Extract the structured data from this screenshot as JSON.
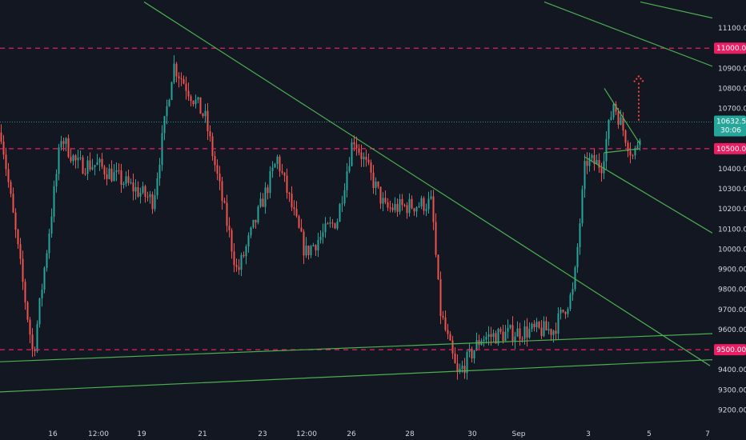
{
  "chart_data": {
    "type": "candlestick",
    "x_axis": {
      "ticks": [
        "16",
        "12:00",
        "19",
        "21",
        "23",
        "12:00",
        "26",
        "28",
        "30",
        "Sep",
        "3",
        "5",
        "7"
      ]
    },
    "y_axis": {
      "ticks": [
        "9200.00",
        "9300.00",
        "9400.00",
        "9500.00",
        "9600.00",
        "9700.00",
        "9800.00",
        "9900.00",
        "10000.00",
        "10100.00",
        "10200.00",
        "10300.00",
        "10400.00",
        "10500.00",
        "10600.00",
        "10700.00",
        "10800.00",
        "10900.00",
        "11000.00",
        "11100.00"
      ],
      "range": [
        9170,
        11180
      ]
    },
    "price_levels": [
      {
        "value": 11000.0,
        "label": "11000.00",
        "style": "dashed",
        "color": "#e91e63"
      },
      {
        "value": 10500.0,
        "label": "10500.00",
        "style": "dashed",
        "color": "#e91e63"
      },
      {
        "value": 9500.0,
        "label": "9500.00",
        "style": "dashed",
        "color": "#e91e63"
      }
    ],
    "current_price": {
      "value": 10632.5,
      "label": "10632.50",
      "countdown": "30:06",
      "color": "#26a69a"
    },
    "price_segments": [
      {
        "t0": 0,
        "t1": 40,
        "p0": 10580,
        "p1": 9470
      },
      {
        "t0": 40,
        "t1": 75,
        "p0": 9470,
        "p1": 10560
      },
      {
        "t0": 75,
        "t1": 95,
        "p0": 10560,
        "p1": 10420
      },
      {
        "t0": 95,
        "t1": 120,
        "p0": 10420,
        "p1": 10420
      },
      {
        "t0": 120,
        "t1": 190,
        "p0": 10420,
        "p1": 10240
      },
      {
        "t0": 190,
        "t1": 215,
        "p0": 10240,
        "p1": 10920
      },
      {
        "t0": 215,
        "t1": 255,
        "p0": 10920,
        "p1": 10650
      },
      {
        "t0": 255,
        "t1": 295,
        "p0": 10650,
        "p1": 9880
      },
      {
        "t0": 295,
        "t1": 345,
        "p0": 9880,
        "p1": 10450
      },
      {
        "t0": 345,
        "t1": 380,
        "p0": 10450,
        "p1": 9980
      },
      {
        "t0": 380,
        "t1": 420,
        "p0": 9980,
        "p1": 10150
      },
      {
        "t0": 420,
        "t1": 440,
        "p0": 10150,
        "p1": 10560
      },
      {
        "t0": 440,
        "t1": 480,
        "p0": 10560,
        "p1": 10200
      },
      {
        "t0": 480,
        "t1": 538,
        "p0": 10200,
        "p1": 10230
      },
      {
        "t0": 538,
        "t1": 548,
        "p0": 10230,
        "p1": 9700
      },
      {
        "t0": 548,
        "t1": 570,
        "p0": 9700,
        "p1": 9370
      },
      {
        "t0": 570,
        "t1": 600,
        "p0": 9370,
        "p1": 9560
      },
      {
        "t0": 600,
        "t1": 650,
        "p0": 9560,
        "p1": 9590
      },
      {
        "t0": 650,
        "t1": 690,
        "p0": 9590,
        "p1": 9600
      },
      {
        "t0": 690,
        "t1": 715,
        "p0": 9600,
        "p1": 9790
      },
      {
        "t0": 715,
        "t1": 730,
        "p0": 9790,
        "p1": 10440
      },
      {
        "t0": 730,
        "t1": 750,
        "p0": 10440,
        "p1": 10420
      },
      {
        "t0": 750,
        "t1": 765,
        "p0": 10420,
        "p1": 10730
      },
      {
        "t0": 765,
        "t1": 790,
        "p0": 10730,
        "p1": 10450
      },
      {
        "t0": 790,
        "t1": 800,
        "p0": 10450,
        "p1": 10620
      }
    ],
    "trend_lines": [
      {
        "t0": 180,
        "p0": 11230,
        "t1": 887,
        "p1": 9420
      },
      {
        "t0": 0,
        "p0": 9440,
        "t1": 890,
        "p1": 9580
      },
      {
        "t0": 0,
        "p0": 9290,
        "t1": 890,
        "p1": 9450
      },
      {
        "t0": 680,
        "p0": 11230,
        "t1": 890,
        "p1": 10910
      },
      {
        "t0": 800,
        "p0": 11230,
        "t1": 890,
        "p1": 11150
      },
      {
        "t0": 730,
        "p0": 10460,
        "t1": 890,
        "p1": 10080
      },
      {
        "t0": 755,
        "p0": 10800,
        "t1": 800,
        "p1": 10520
      },
      {
        "t0": 755,
        "p0": 10480,
        "t1": 800,
        "p1": 10500
      }
    ],
    "projection_arrow": {
      "t": 798,
      "p0": 10640,
      "p1": 10860,
      "color": "#f44336"
    }
  }
}
